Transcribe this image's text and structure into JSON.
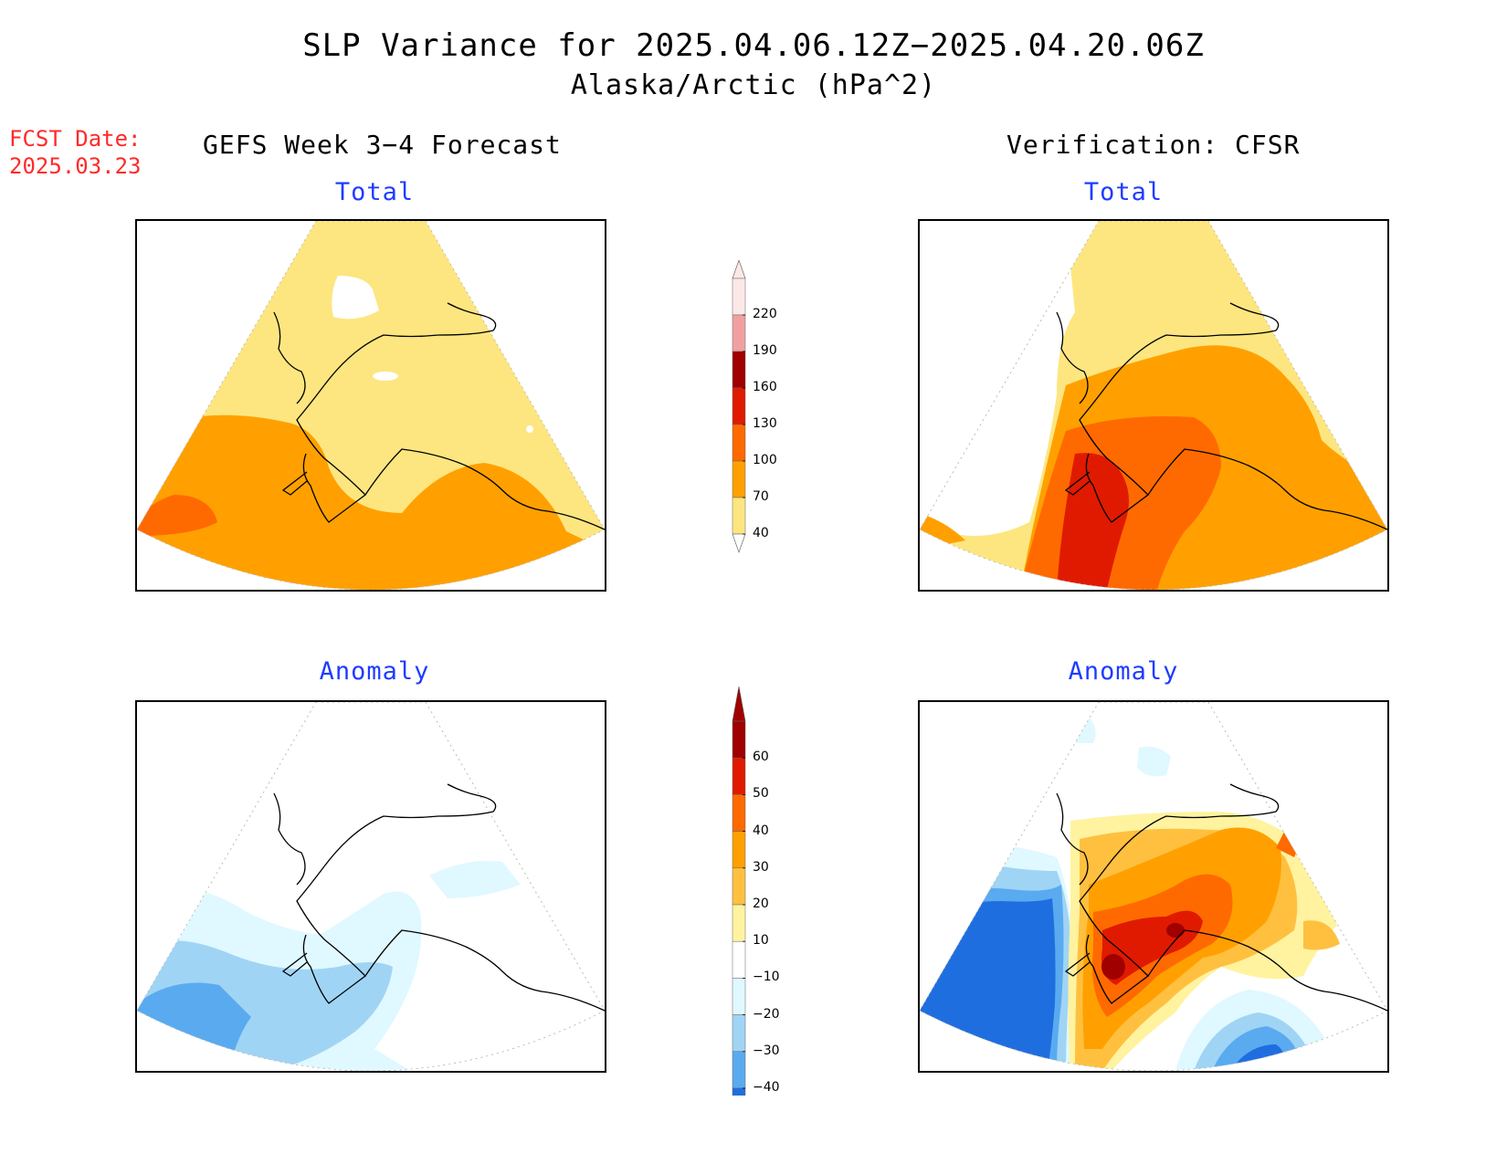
{
  "title": {
    "line1": "SLP Variance for 2025.04.06.12Z−2025.04.20.06Z",
    "line2": "Alaska/Arctic (hPa^2)"
  },
  "fcst_date": {
    "label": "FCST Date:",
    "value": "2025.03.23"
  },
  "columns": {
    "left": "GEFS Week 3−4 Forecast",
    "right": "Verification: CFSR"
  },
  "panels": {
    "top_left": {
      "subtitle": "Total"
    },
    "top_right": {
      "subtitle": "Total"
    },
    "bottom_left": {
      "subtitle": "Anomaly"
    },
    "bottom_right": {
      "subtitle": "Anomaly"
    }
  },
  "colorbars": {
    "total": {
      "labels": [
        "220",
        "190",
        "160",
        "130",
        "100",
        "70",
        "40"
      ],
      "colors": [
        "#fde8e8",
        "#f0a0a0",
        "#a00000",
        "#e01a00",
        "#ff6a00",
        "#ffa000",
        "#fde680"
      ]
    },
    "anomaly": {
      "labels": [
        "60",
        "50",
        "40",
        "30",
        "20",
        "10",
        "−10",
        "−20",
        "−30",
        "−40"
      ],
      "colors": [
        "#a00000",
        "#e01a00",
        "#ff6a00",
        "#ffa000",
        "#ffc040",
        "#fff3a0",
        "#ffffff",
        "#e0f8ff",
        "#a0d4f5",
        "#5aaaf0",
        "#1f6ee0"
      ]
    }
  },
  "colors": {
    "subtitle": "#1f3cff",
    "fcst": "#ff2a2a"
  }
}
